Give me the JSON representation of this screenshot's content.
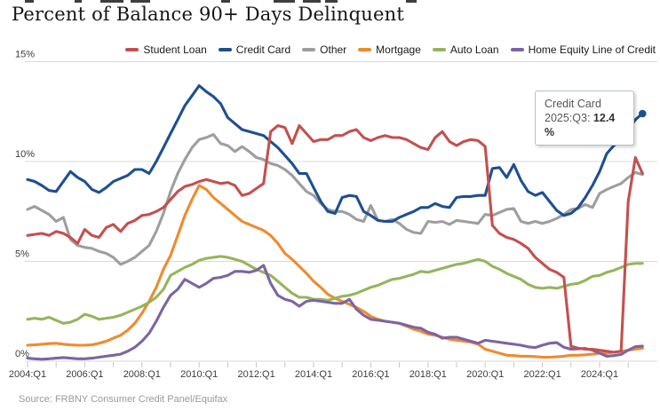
{
  "title": "Percent of Balance 90+ Days Delinquent",
  "source": "Source: FRBNY Consumer Credit Panel/Equifax",
  "tooltip": {
    "series": "Credit Card",
    "period": "2025:Q3:",
    "value": "12.4 %"
  },
  "chart_data": {
    "type": "line",
    "title": "Percent of Balance 90+ Days Delinquent",
    "xlabel": "",
    "ylabel": "",
    "xlim": [
      2004.0,
      2025.75
    ],
    "ylim": [
      0,
      15
    ],
    "grid": "horizontal",
    "legend_position": "top-right",
    "x_start": 2004.0,
    "x_step_years": 0.25,
    "x_axis_labels": [
      "2004:Q1",
      "2006:Q1",
      "2008:Q1",
      "2010:Q1",
      "2012:Q1",
      "2014:Q1",
      "2016:Q1",
      "2018:Q1",
      "2020:Q1",
      "2022:Q1",
      "2024:Q1"
    ],
    "y_tick_labels": [
      "0%",
      "5%",
      "10%",
      "15%"
    ],
    "y_tick_values": [
      0,
      5,
      10,
      15
    ],
    "end_marker": {
      "series": "Credit Card",
      "t": 2025.5,
      "value": 12.4
    },
    "series": [
      {
        "name": "Student Loan",
        "color": "#c4504e",
        "values": [
          6.3,
          6.35,
          6.4,
          6.3,
          6.5,
          6.4,
          6.2,
          5.9,
          6.6,
          6.3,
          6.2,
          6.7,
          6.85,
          6.5,
          6.9,
          7.05,
          7.3,
          7.35,
          7.5,
          7.7,
          8.1,
          8.5,
          8.75,
          8.85,
          9.0,
          9.1,
          9.0,
          8.9,
          8.95,
          8.8,
          8.3,
          8.4,
          8.65,
          8.9,
          11.5,
          11.8,
          11.7,
          10.9,
          11.8,
          11.4,
          11.0,
          11.1,
          11.1,
          11.3,
          11.3,
          11.5,
          11.6,
          11.2,
          11.05,
          11.2,
          11.3,
          11.2,
          11.2,
          11.1,
          10.9,
          10.7,
          10.6,
          11.2,
          11.5,
          11.0,
          10.8,
          11.0,
          11.1,
          11.05,
          10.75,
          6.8,
          6.4,
          6.2,
          6.1,
          5.9,
          5.65,
          5.2,
          4.9,
          4.6,
          4.45,
          4.2,
          0.75,
          0.65,
          0.6,
          0.6,
          0.55,
          0.5,
          0.45,
          0.5,
          8.0,
          10.2,
          9.4
        ]
      },
      {
        "name": "Credit Card",
        "color": "#1e4f91",
        "values": [
          9.1,
          9.0,
          8.8,
          8.55,
          8.5,
          9.0,
          9.5,
          9.2,
          9.0,
          8.6,
          8.45,
          8.7,
          9.0,
          9.15,
          9.3,
          9.6,
          9.6,
          9.4,
          10.0,
          10.7,
          11.4,
          12.1,
          12.8,
          13.3,
          13.8,
          13.5,
          13.25,
          12.9,
          12.2,
          11.9,
          11.6,
          11.5,
          11.4,
          11.3,
          11.0,
          10.7,
          10.3,
          9.9,
          9.4,
          9.4,
          8.7,
          8.0,
          7.5,
          7.4,
          8.2,
          8.3,
          8.25,
          7.5,
          7.3,
          7.05,
          7.0,
          7.0,
          7.2,
          7.35,
          7.5,
          7.7,
          7.7,
          7.9,
          7.75,
          7.7,
          8.2,
          8.25,
          8.25,
          8.3,
          8.3,
          9.65,
          9.7,
          9.2,
          9.85,
          9.05,
          8.5,
          8.3,
          8.45,
          8.0,
          7.55,
          7.3,
          7.4,
          7.7,
          8.2,
          8.8,
          9.5,
          10.4,
          10.8,
          11.1,
          11.6,
          12.1,
          12.4
        ]
      },
      {
        "name": "Other",
        "color": "#9e9e9e",
        "values": [
          7.6,
          7.75,
          7.55,
          7.35,
          7.0,
          7.2,
          6.1,
          5.8,
          5.7,
          5.65,
          5.5,
          5.4,
          5.2,
          4.85,
          5.0,
          5.2,
          5.5,
          5.8,
          6.5,
          7.4,
          8.5,
          9.4,
          10.1,
          10.7,
          11.1,
          11.2,
          11.35,
          10.9,
          10.8,
          10.5,
          10.75,
          10.5,
          10.2,
          10.1,
          9.9,
          9.8,
          9.6,
          9.3,
          8.9,
          8.5,
          8.3,
          7.9,
          7.6,
          7.5,
          7.5,
          7.35,
          7.1,
          7.0,
          7.8,
          7.05,
          7.0,
          7.1,
          6.9,
          6.6,
          6.45,
          6.4,
          7.0,
          6.95,
          7.0,
          6.85,
          7.05,
          7.0,
          6.95,
          6.9,
          7.35,
          7.3,
          7.45,
          7.6,
          7.65,
          7.0,
          6.9,
          7.0,
          6.9,
          7.0,
          7.15,
          7.35,
          7.6,
          7.65,
          7.85,
          7.7,
          8.4,
          8.6,
          8.75,
          8.9,
          9.2,
          9.45,
          9.35
        ]
      },
      {
        "name": "Mortgage",
        "color": "#ef8b2d",
        "values": [
          0.8,
          0.82,
          0.85,
          0.88,
          0.9,
          0.85,
          0.82,
          0.8,
          0.8,
          0.82,
          0.9,
          1.0,
          1.15,
          1.3,
          1.55,
          1.9,
          2.4,
          3.0,
          3.7,
          4.6,
          5.3,
          6.3,
          7.3,
          8.1,
          8.8,
          8.6,
          8.2,
          7.9,
          7.6,
          7.3,
          7.0,
          6.85,
          6.7,
          6.55,
          6.3,
          5.9,
          5.4,
          5.1,
          4.75,
          4.4,
          4.0,
          3.7,
          3.35,
          3.15,
          3.0,
          2.85,
          2.7,
          2.5,
          2.25,
          2.1,
          2.0,
          1.95,
          1.9,
          1.75,
          1.6,
          1.5,
          1.35,
          1.3,
          1.2,
          1.1,
          1.05,
          1.0,
          0.95,
          0.85,
          0.6,
          0.5,
          0.4,
          0.3,
          0.28,
          0.25,
          0.25,
          0.23,
          0.2,
          0.2,
          0.22,
          0.25,
          0.3,
          0.3,
          0.32,
          0.35,
          0.4,
          0.4,
          0.45,
          0.5,
          0.55,
          0.6,
          0.65
        ]
      },
      {
        "name": "Auto Loan",
        "color": "#95b55c",
        "values": [
          2.1,
          2.15,
          2.1,
          2.2,
          2.05,
          1.9,
          1.95,
          2.1,
          2.35,
          2.25,
          2.1,
          2.15,
          2.2,
          2.3,
          2.45,
          2.6,
          2.75,
          2.95,
          3.2,
          3.6,
          4.3,
          4.5,
          4.7,
          4.85,
          5.05,
          5.15,
          5.2,
          5.25,
          5.2,
          5.1,
          5.0,
          4.8,
          4.6,
          4.45,
          4.3,
          4.0,
          3.7,
          3.4,
          3.2,
          3.2,
          3.1,
          3.1,
          3.05,
          3.15,
          3.25,
          3.3,
          3.4,
          3.55,
          3.7,
          3.8,
          3.95,
          4.1,
          4.15,
          4.25,
          4.35,
          4.5,
          4.45,
          4.55,
          4.65,
          4.75,
          4.85,
          4.9,
          5.0,
          5.1,
          5.0,
          4.75,
          4.6,
          4.4,
          4.25,
          4.1,
          3.85,
          3.7,
          3.65,
          3.7,
          3.65,
          3.75,
          3.85,
          3.9,
          4.05,
          4.25,
          4.3,
          4.45,
          4.55,
          4.7,
          4.85,
          4.9,
          4.9
        ]
      },
      {
        "name": "Home Equity Line of Credit",
        "color": "#7c64a4",
        "values": [
          0.15,
          0.12,
          0.1,
          0.12,
          0.15,
          0.18,
          0.15,
          0.12,
          0.12,
          0.15,
          0.2,
          0.25,
          0.3,
          0.35,
          0.5,
          0.7,
          1.0,
          1.4,
          2.0,
          2.7,
          3.3,
          3.6,
          4.1,
          3.9,
          3.7,
          3.9,
          4.15,
          4.2,
          4.3,
          4.5,
          4.5,
          4.45,
          4.55,
          4.8,
          3.9,
          3.3,
          3.1,
          3.0,
          2.75,
          3.0,
          3.05,
          3.0,
          2.95,
          2.9,
          2.9,
          3.1,
          2.6,
          2.3,
          2.1,
          2.05,
          2.0,
          1.95,
          1.9,
          1.8,
          1.7,
          1.65,
          1.45,
          1.35,
          1.15,
          1.2,
          1.2,
          1.1,
          1.0,
          0.9,
          1.05,
          1.0,
          0.95,
          0.9,
          0.85,
          0.8,
          0.72,
          0.68,
          0.8,
          0.9,
          0.93,
          0.7,
          0.6,
          0.62,
          0.64,
          0.55,
          0.4,
          0.25,
          0.28,
          0.34,
          0.55,
          0.73,
          0.75
        ]
      }
    ]
  }
}
